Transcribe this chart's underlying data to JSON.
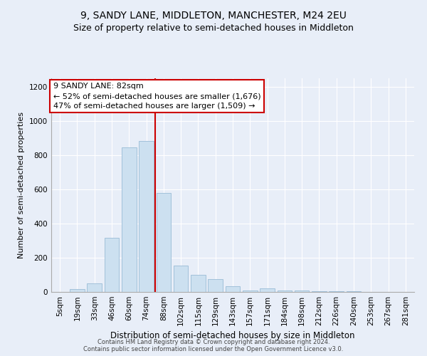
{
  "title": "9, SANDY LANE, MIDDLETON, MANCHESTER, M24 2EU",
  "subtitle": "Size of property relative to semi-detached houses in Middleton",
  "xlabel": "Distribution of semi-detached houses by size in Middleton",
  "ylabel": "Number of semi-detached properties",
  "footer_line1": "Contains HM Land Registry data © Crown copyright and database right 2024.",
  "footer_line2": "Contains public sector information licensed under the Open Government Licence v3.0.",
  "categories": [
    "5sqm",
    "19sqm",
    "33sqm",
    "46sqm",
    "60sqm",
    "74sqm",
    "88sqm",
    "102sqm",
    "115sqm",
    "129sqm",
    "143sqm",
    "157sqm",
    "171sqm",
    "184sqm",
    "198sqm",
    "212sqm",
    "226sqm",
    "240sqm",
    "253sqm",
    "267sqm",
    "281sqm"
  ],
  "values": [
    2,
    18,
    50,
    315,
    845,
    885,
    580,
    155,
    100,
    75,
    35,
    10,
    20,
    10,
    8,
    5,
    5,
    3,
    2,
    2,
    2
  ],
  "bar_color": "#cce0f0",
  "bar_edge_color": "#99bbd6",
  "property_line_color": "#cc0000",
  "property_bin_index": 6,
  "annotation_line1": "9 SANDY LANE: 82sqm",
  "annotation_line2": "← 52% of semi-detached houses are smaller (1,676)",
  "annotation_line3": "47% of semi-detached houses are larger (1,509) →",
  "annotation_box_facecolor": "#ffffff",
  "annotation_box_edgecolor": "#cc0000",
  "ylim": [
    0,
    1250
  ],
  "yticks": [
    0,
    200,
    400,
    600,
    800,
    1000,
    1200
  ],
  "background_color": "#e8eef8",
  "plot_background": "#e8eef8",
  "grid_color": "#ffffff",
  "title_fontsize": 10,
  "subtitle_fontsize": 9,
  "ylabel_fontsize": 8,
  "xlabel_fontsize": 8.5,
  "tick_fontsize": 7.5,
  "annotation_fontsize": 8,
  "footer_fontsize": 6
}
